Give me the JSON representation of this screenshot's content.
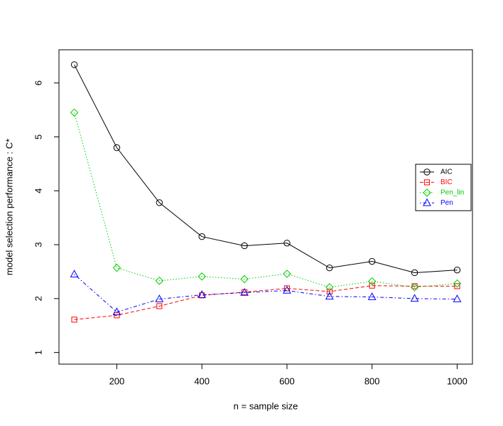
{
  "chart_data": {
    "type": "line",
    "x_label": "n = sample size",
    "y_label": "model selection performance : C*",
    "x": [
      100,
      200,
      300,
      400,
      500,
      600,
      700,
      800,
      900,
      1000
    ],
    "series": [
      {
        "name": "AIC",
        "color": "#000000",
        "linestyle": "solid",
        "marker": "circle",
        "values": [
          6.34,
          4.8,
          3.78,
          3.15,
          2.98,
          3.03,
          2.57,
          2.69,
          2.48,
          2.53
        ]
      },
      {
        "name": "BIC",
        "color": "#ff0000",
        "linestyle": "dashed",
        "marker": "square",
        "values": [
          1.61,
          1.69,
          1.86,
          2.06,
          2.12,
          2.19,
          2.13,
          2.24,
          2.23,
          2.23
        ]
      },
      {
        "name": "Pen_lin",
        "color": "#00cd00",
        "linestyle": "dotted",
        "marker": "diamond",
        "values": [
          5.45,
          2.57,
          2.33,
          2.41,
          2.36,
          2.46,
          2.21,
          2.32,
          2.21,
          2.28
        ]
      },
      {
        "name": "Pen",
        "color": "#0000ff",
        "linestyle": "dashdot",
        "marker": "triangle",
        "values": [
          2.45,
          1.75,
          1.99,
          2.07,
          2.11,
          2.15,
          2.04,
          2.03,
          2.0,
          1.99
        ]
      }
    ],
    "xlim": [
      64,
      1036
    ],
    "xticks": [
      200,
      400,
      600,
      800,
      1000
    ],
    "ylim": [
      0.784,
      6.616
    ],
    "yticks": [
      1,
      2,
      3,
      4,
      5,
      6
    ],
    "legend": "right"
  }
}
